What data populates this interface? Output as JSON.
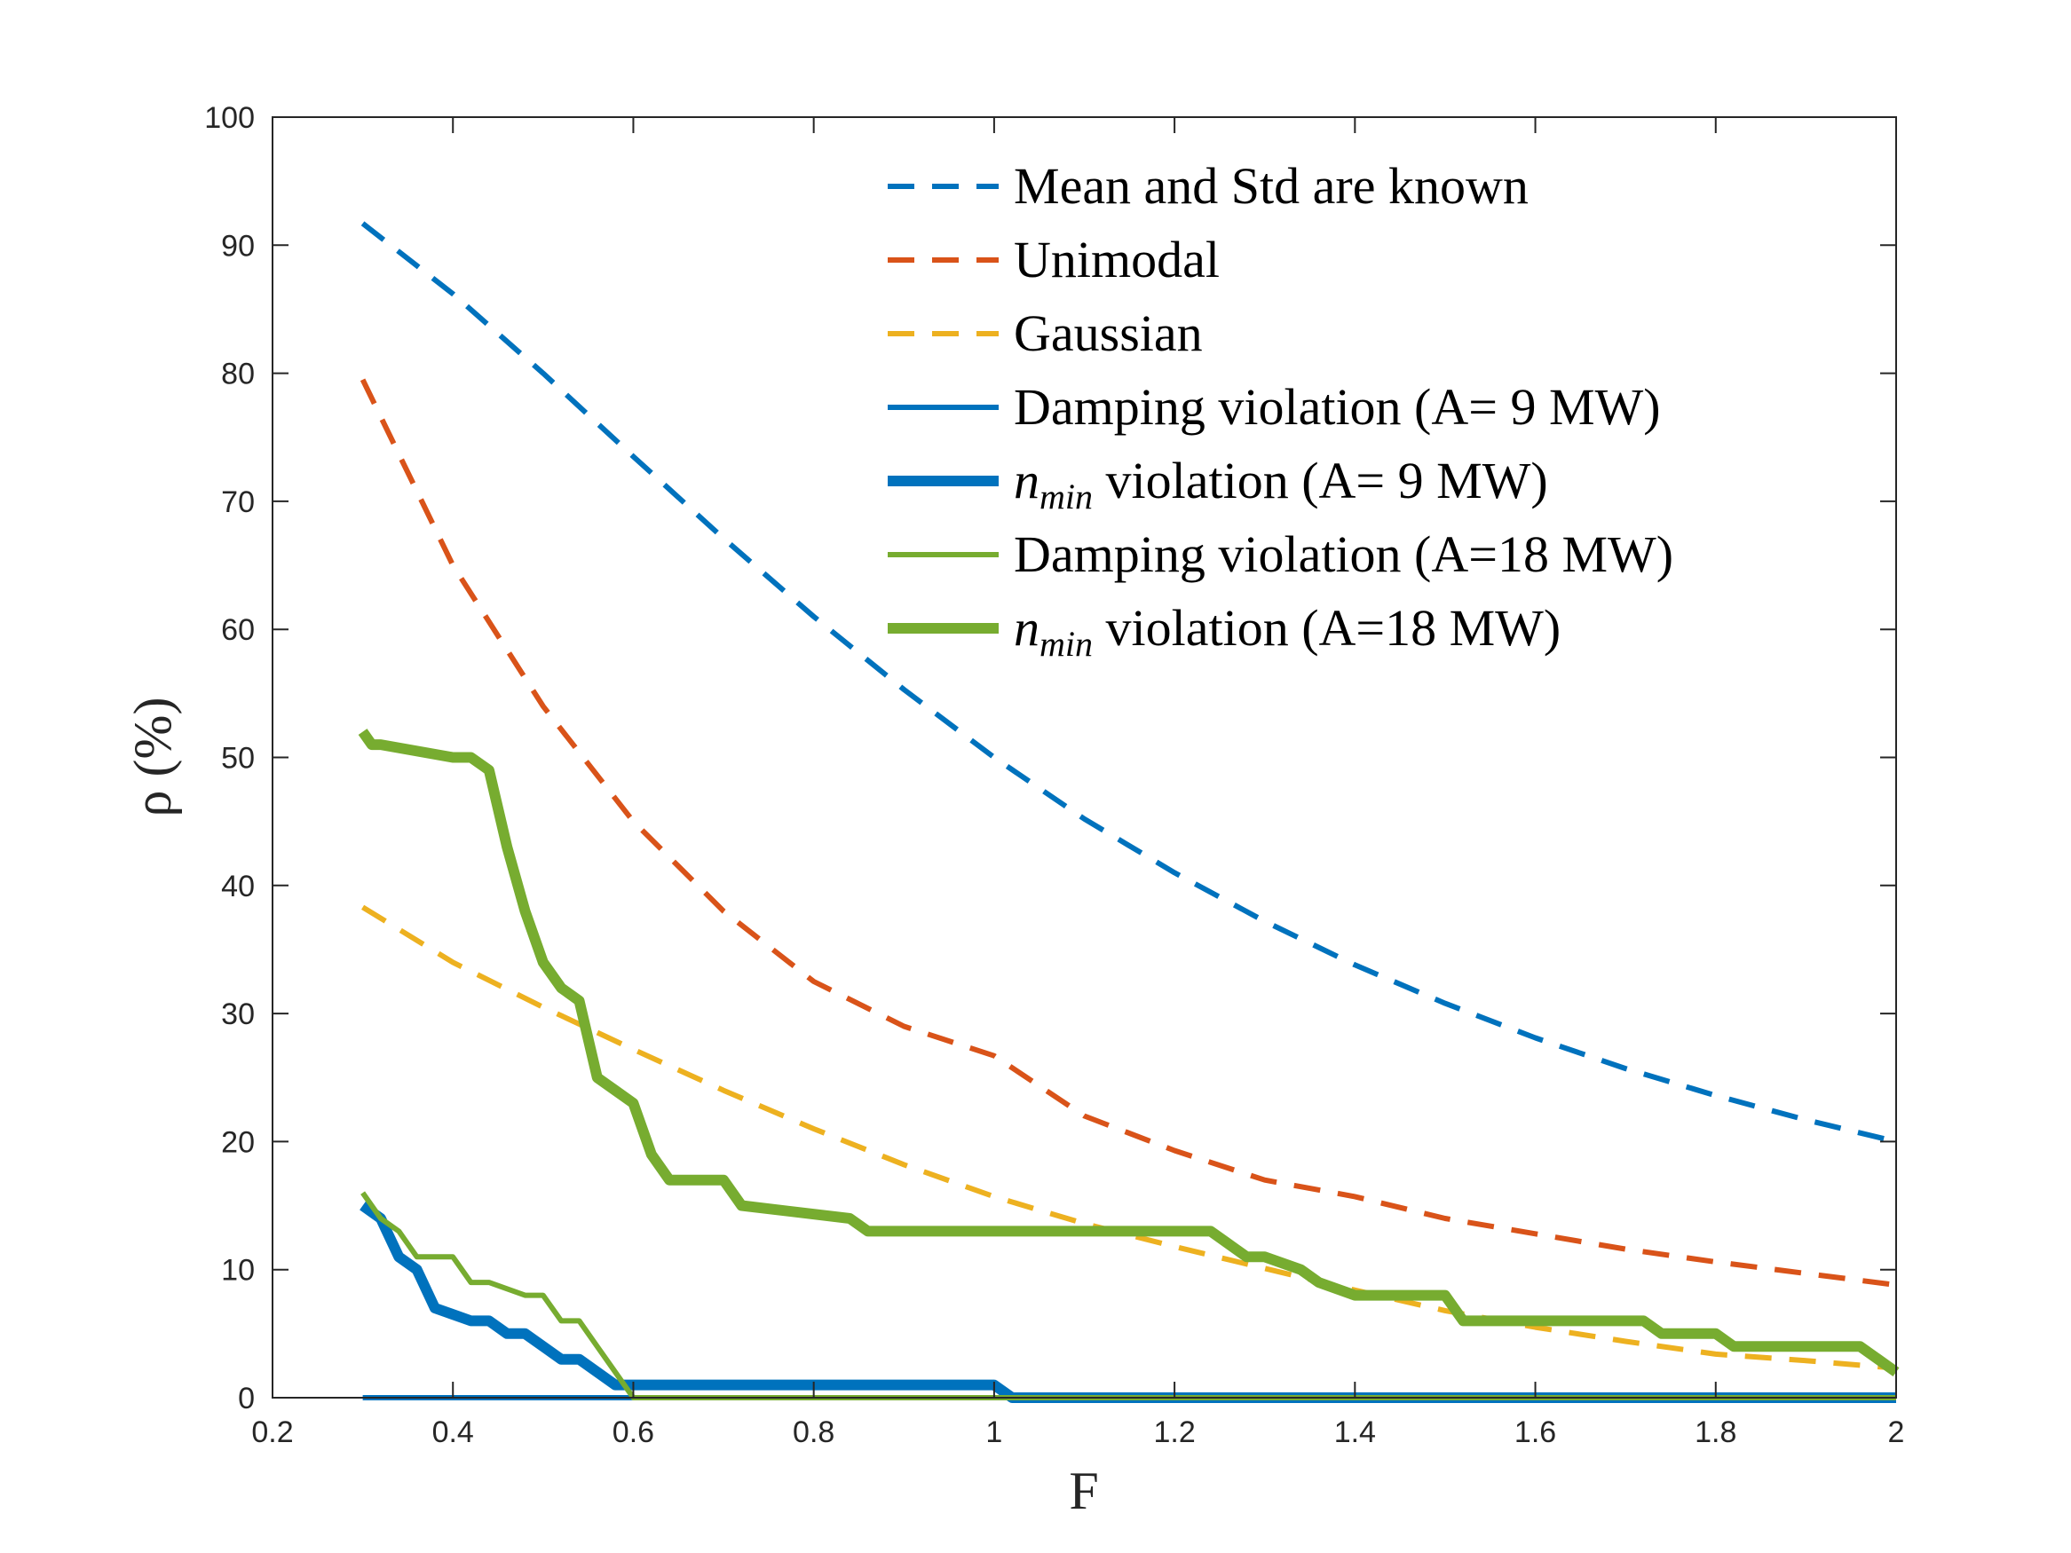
{
  "chart_data": {
    "type": "line",
    "title": "",
    "xlabel": "F",
    "ylabel": "ρ (%)",
    "xlim": [
      0.2,
      2
    ],
    "ylim": [
      0,
      100
    ],
    "xticks": [
      0.2,
      0.4,
      0.6,
      0.8,
      1,
      1.2,
      1.4,
      1.6,
      1.8,
      2
    ],
    "xtick_labels": [
      "0.2",
      "0.4",
      "0.6",
      "0.8",
      "1",
      "1.2",
      "1.4",
      "1.6",
      "1.8",
      "2"
    ],
    "yticks": [
      0,
      10,
      20,
      30,
      40,
      50,
      60,
      70,
      80,
      90,
      100
    ],
    "ytick_labels": [
      "0",
      "10",
      "20",
      "30",
      "40",
      "50",
      "60",
      "70",
      "80",
      "90",
      "100"
    ],
    "legend_position": "top-right",
    "series": [
      {
        "name": "Mean and Std are known",
        "label_parts": [
          "Mean and Std are known"
        ],
        "color": "#0072BD",
        "style": "dashed",
        "width": "thin",
        "x": [
          0.3,
          0.4,
          0.5,
          0.6,
          0.7,
          0.8,
          0.9,
          1.0,
          1.1,
          1.2,
          1.3,
          1.4,
          1.5,
          1.6,
          1.7,
          1.8,
          1.9,
          2.0
        ],
        "y": [
          91.7,
          86.2,
          80.0,
          73.5,
          67.1,
          61.0,
          55.3,
          50.0,
          45.2,
          41.0,
          37.2,
          33.8,
          30.8,
          28.1,
          25.7,
          23.6,
          21.7,
          20.0
        ]
      },
      {
        "name": "Unimodal",
        "label_parts": [
          "Unimodal"
        ],
        "color": "#D95319",
        "style": "dashed",
        "width": "thin",
        "x": [
          0.3,
          0.4,
          0.5,
          0.6,
          0.7,
          0.8,
          0.9,
          1.0,
          1.1,
          1.2,
          1.3,
          1.4,
          1.5,
          1.6,
          1.7,
          1.8,
          1.9,
          2.0
        ],
        "y": [
          79.5,
          65.0,
          54.0,
          45.0,
          38.0,
          32.5,
          29.0,
          26.7,
          22.0,
          19.3,
          17.0,
          15.7,
          14.0,
          12.8,
          11.6,
          10.6,
          9.7,
          8.8
        ]
      },
      {
        "name": "Gaussian",
        "label_parts": [
          "Gaussian"
        ],
        "color": "#EDB120",
        "style": "dashed",
        "width": "thin",
        "x": [
          0.3,
          0.4,
          0.5,
          0.6,
          0.7,
          0.8,
          0.9,
          1.0,
          1.1,
          1.2,
          1.3,
          1.4,
          1.5,
          1.6,
          1.7,
          1.8,
          1.9,
          2.0
        ],
        "y": [
          38.3,
          34.0,
          30.5,
          27.2,
          24.0,
          21.0,
          18.2,
          15.7,
          13.6,
          11.8,
          10.1,
          8.4,
          6.8,
          5.5,
          4.4,
          3.4,
          2.9,
          2.3
        ]
      },
      {
        "name": "Damping violation (A= 9 MW)",
        "label_parts": [
          "Damping violation (A= 9 MW)"
        ],
        "color": "#0072BD",
        "style": "solid",
        "width": "thin",
        "x": [
          0.3,
          2.0
        ],
        "y": [
          0,
          0
        ]
      },
      {
        "name": "nmin violation (A= 9 MW)",
        "label_parts": [
          "n",
          "min",
          " violation (A= 9 MW)"
        ],
        "color": "#0072BD",
        "style": "solid",
        "width": "thick",
        "x": [
          0.3,
          0.32,
          0.34,
          0.36,
          0.38,
          0.42,
          0.44,
          0.46,
          0.48,
          0.52,
          0.54,
          0.58,
          0.6,
          1.0,
          1.02,
          2.0
        ],
        "y": [
          15,
          14,
          11,
          10,
          7,
          6,
          6,
          5,
          5,
          3,
          3,
          1,
          1,
          1,
          0,
          0
        ]
      },
      {
        "name": "Damping violation (A=18 MW)",
        "label_parts": [
          "Damping violation (A=18 MW)"
        ],
        "color": "#77AC30",
        "style": "solid",
        "width": "thin",
        "x": [
          0.3,
          0.32,
          0.34,
          0.36,
          0.38,
          0.4,
          0.42,
          0.44,
          0.48,
          0.5,
          0.52,
          0.54,
          0.56,
          0.58,
          0.6,
          2.0
        ],
        "y": [
          16,
          14,
          13,
          11,
          11,
          11,
          9,
          9,
          8,
          8,
          6,
          6,
          4,
          2,
          0,
          0
        ]
      },
      {
        "name": "nmin violation (A=18 MW)",
        "label_parts": [
          "n",
          "min",
          " violation (A=18 MW)"
        ],
        "color": "#77AC30",
        "style": "solid",
        "width": "thick",
        "x": [
          0.3,
          0.31,
          0.32,
          0.4,
          0.42,
          0.44,
          0.46,
          0.48,
          0.5,
          0.52,
          0.54,
          0.56,
          0.58,
          0.6,
          0.62,
          0.64,
          0.7,
          0.72,
          0.84,
          0.86,
          0.88,
          1.24,
          1.26,
          1.28,
          1.3,
          1.34,
          1.36,
          1.4,
          1.5,
          1.52,
          1.72,
          1.74,
          1.8,
          1.82,
          1.96,
          1.98,
          2.0
        ],
        "y": [
          52,
          51,
          51,
          50,
          50,
          49,
          43,
          38,
          34,
          32,
          31,
          25,
          24,
          23,
          19,
          17,
          17,
          15,
          14,
          13,
          13,
          13,
          12,
          11,
          11,
          10,
          9,
          8,
          8,
          6,
          6,
          5,
          5,
          4,
          4,
          3,
          2
        ]
      }
    ]
  }
}
